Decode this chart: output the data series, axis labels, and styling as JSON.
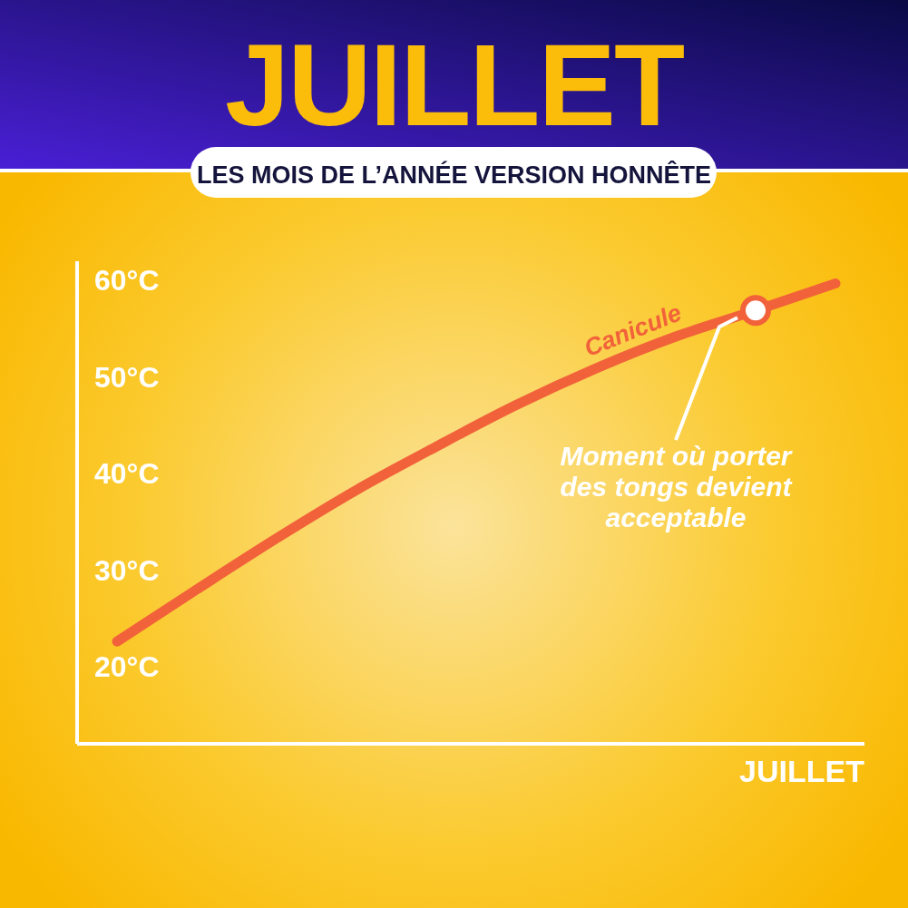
{
  "chart_data": {
    "type": "line",
    "title": "JUILLET",
    "subtitle": "LES MOIS DE L’ANNÉE VERSION HONNÊTE",
    "xlabel": "JUILLET",
    "categories": [
      null,
      null,
      null,
      null,
      null,
      null,
      null,
      null,
      null,
      null
    ],
    "series": [
      {
        "name": "Canicule",
        "color": "#f2623a",
        "values": [
          22.6,
          28.0,
          33.3,
          38.3,
          42.8,
          47.1,
          50.9,
          54.2,
          56.9,
          59.7
        ]
      },
      {
        "type": "scatter",
        "color": "#ffffff",
        "marker": "circle",
        "values": [
          null,
          null,
          null,
          null,
          null,
          null,
          null,
          null,
          56.9,
          null
        ]
      }
    ],
    "ylim": [
      12,
      62
    ],
    "yticks": [
      {
        "value": 20,
        "label": "20°C"
      },
      {
        "value": 30,
        "label": "30°C"
      },
      {
        "value": 40,
        "label": "40°C"
      },
      {
        "value": 50,
        "label": "50°C"
      },
      {
        "value": 60,
        "label": "60°C"
      }
    ],
    "annotations": [
      "Moment où porter des tongs devient acceptable"
    ],
    "grid": false,
    "marker": "none",
    "line_style": "solid"
  }
}
